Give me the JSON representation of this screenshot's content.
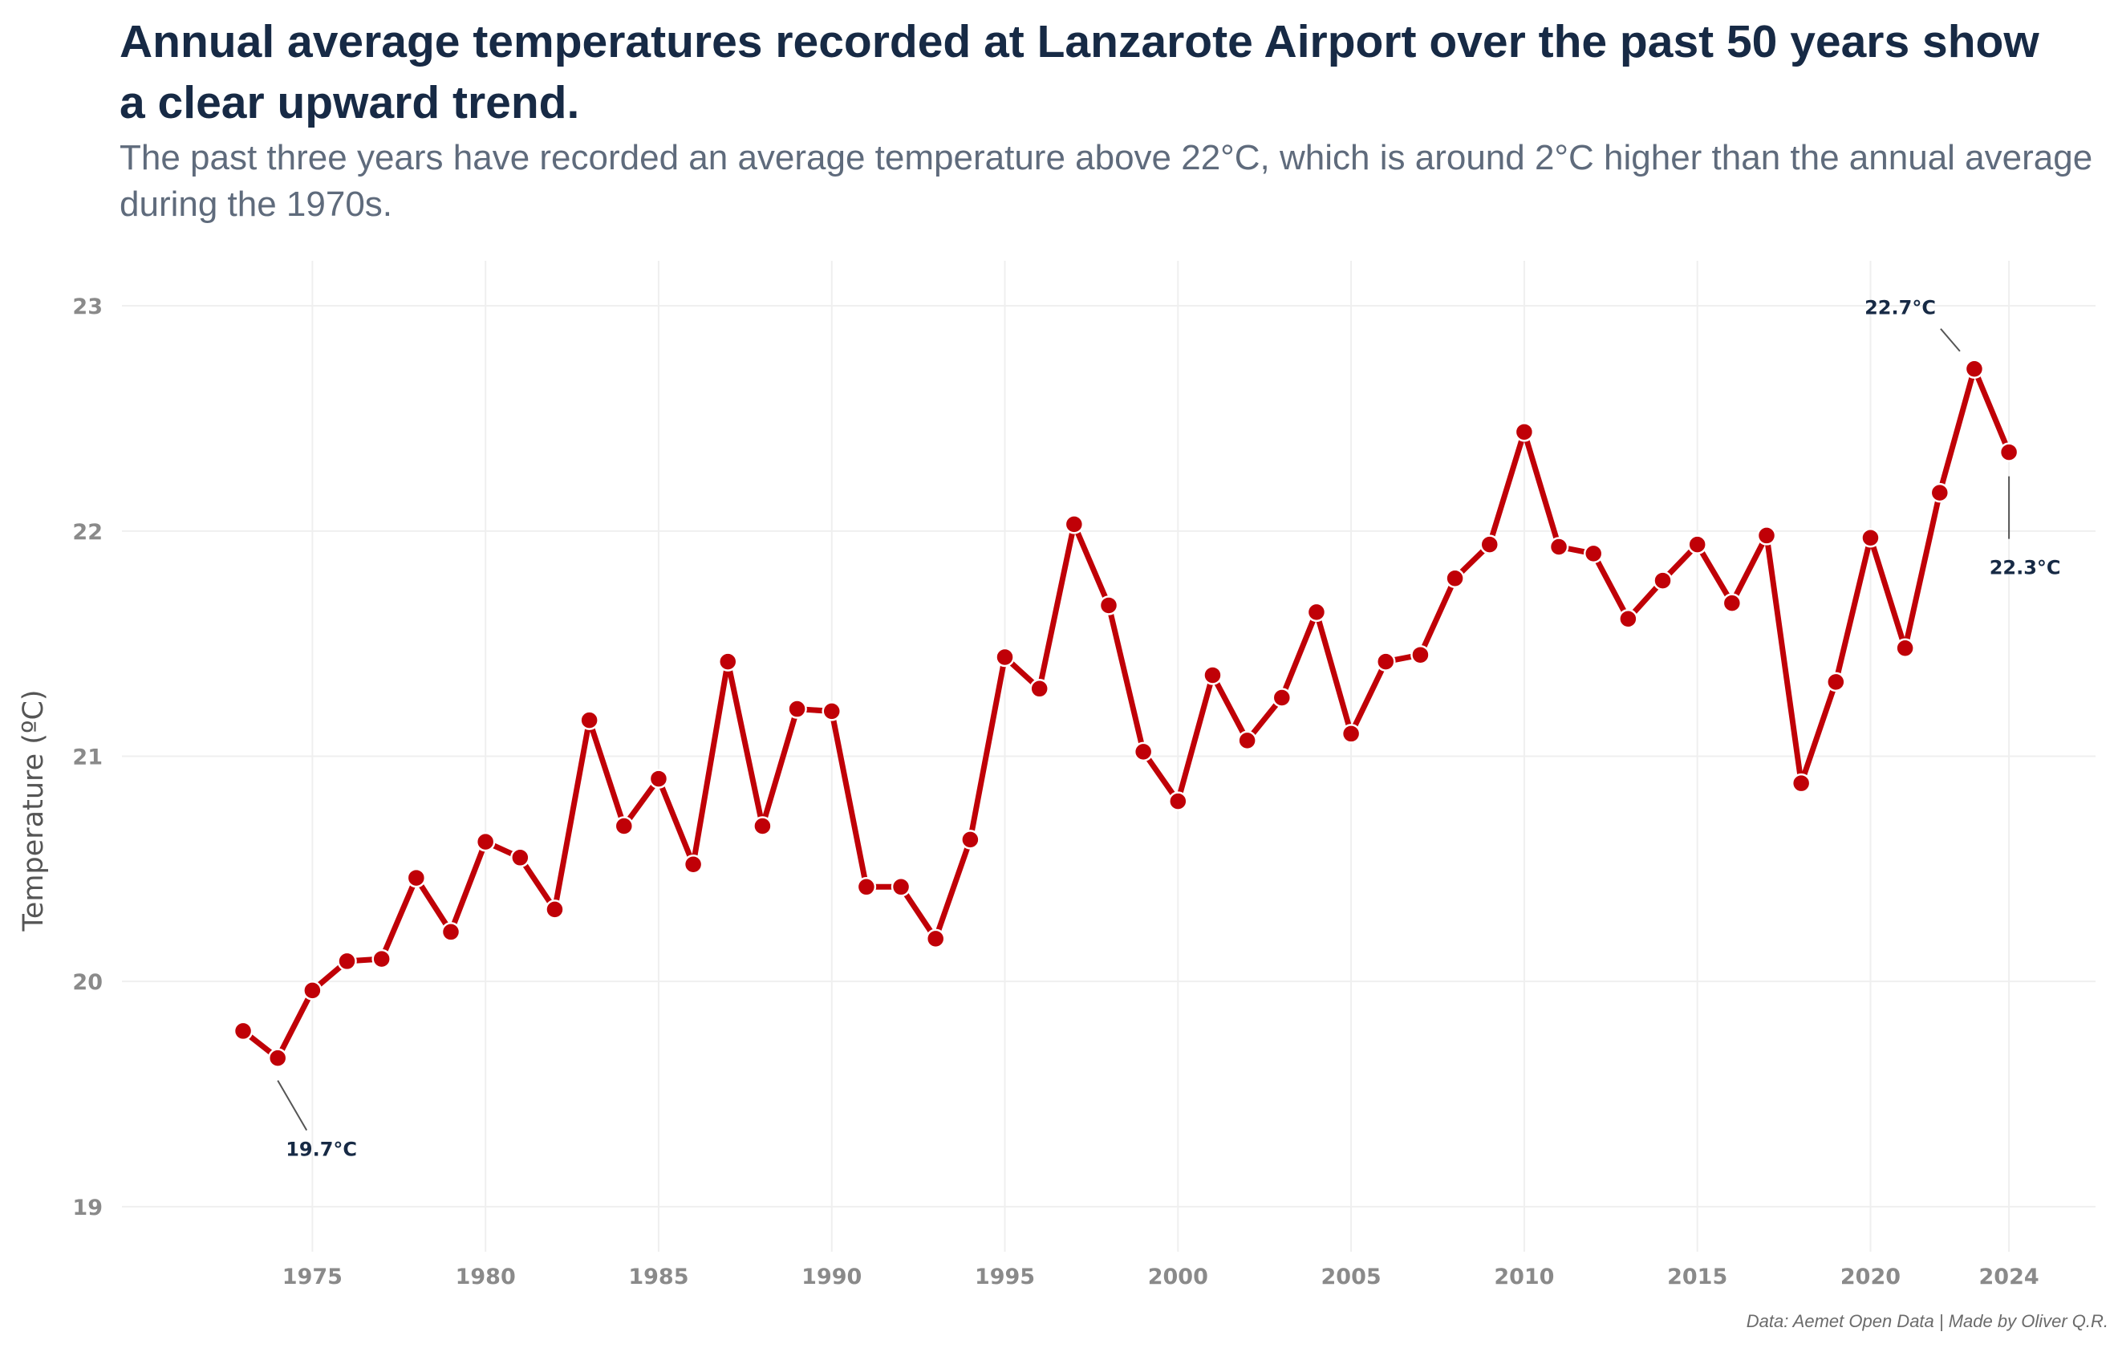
{
  "title": "Annual average temperatures recorded at Lanzarote Airport over the past 50 years show a clear upward trend.",
  "subtitle": "The past three years have recorded an average temperature above 22°C, which is around 2°C higher than the annual average during the 1970s.",
  "caption": "Data: Aemet Open Data | Made by Oliver Q.R.",
  "colors": {
    "line": "#c00007",
    "title": "#172a45",
    "subtitle": "#5f6b7c",
    "tick": "#8a8a8a",
    "grid": "#efefef"
  },
  "chart_data": {
    "type": "line",
    "title": "Annual average temperatures recorded at Lanzarote Airport over the past 50 years show a clear upward trend.",
    "xlabel": "",
    "ylabel": "Temperature (ºC)",
    "xlim": [
      1969.5,
      2026.5
    ],
    "ylim": [
      18.8,
      23.2
    ],
    "grid": true,
    "x_ticks": [
      1975,
      1980,
      1985,
      1990,
      1995,
      2000,
      2005,
      2010,
      2015,
      2020,
      2024
    ],
    "y_ticks": [
      19,
      20,
      21,
      22,
      23
    ],
    "x": [
      1973,
      1974,
      1975,
      1976,
      1977,
      1978,
      1979,
      1980,
      1981,
      1982,
      1983,
      1984,
      1985,
      1986,
      1987,
      1988,
      1989,
      1990,
      1991,
      1992,
      1993,
      1994,
      1995,
      1996,
      1997,
      1998,
      1999,
      2000,
      2001,
      2002,
      2003,
      2004,
      2005,
      2006,
      2007,
      2008,
      2009,
      2010,
      2011,
      2012,
      2013,
      2014,
      2015,
      2016,
      2017,
      2018,
      2019,
      2020,
      2021,
      2022,
      2023,
      2024
    ],
    "series": [
      {
        "name": "Annual average temperature",
        "values": [
          19.78,
          19.66,
          19.96,
          20.09,
          20.1,
          20.46,
          20.22,
          20.62,
          20.55,
          20.32,
          21.16,
          20.69,
          20.9,
          20.52,
          21.42,
          20.69,
          21.21,
          21.2,
          20.42,
          20.42,
          20.19,
          20.63,
          21.44,
          21.3,
          22.03,
          21.67,
          21.02,
          20.8,
          21.36,
          21.07,
          21.26,
          21.64,
          21.1,
          21.42,
          21.45,
          21.79,
          21.94,
          22.44,
          21.93,
          21.9,
          21.61,
          21.78,
          21.94,
          21.68,
          21.98,
          20.88,
          21.33,
          21.97,
          21.48,
          22.17,
          22.72,
          22.35
        ]
      }
    ],
    "annotations": [
      {
        "x": 1974,
        "y": 19.66,
        "label": "19.7°C"
      },
      {
        "x": 2023,
        "y": 22.72,
        "label": "22.7°C"
      },
      {
        "x": 2024,
        "y": 22.35,
        "label": "22.3°C"
      }
    ]
  }
}
